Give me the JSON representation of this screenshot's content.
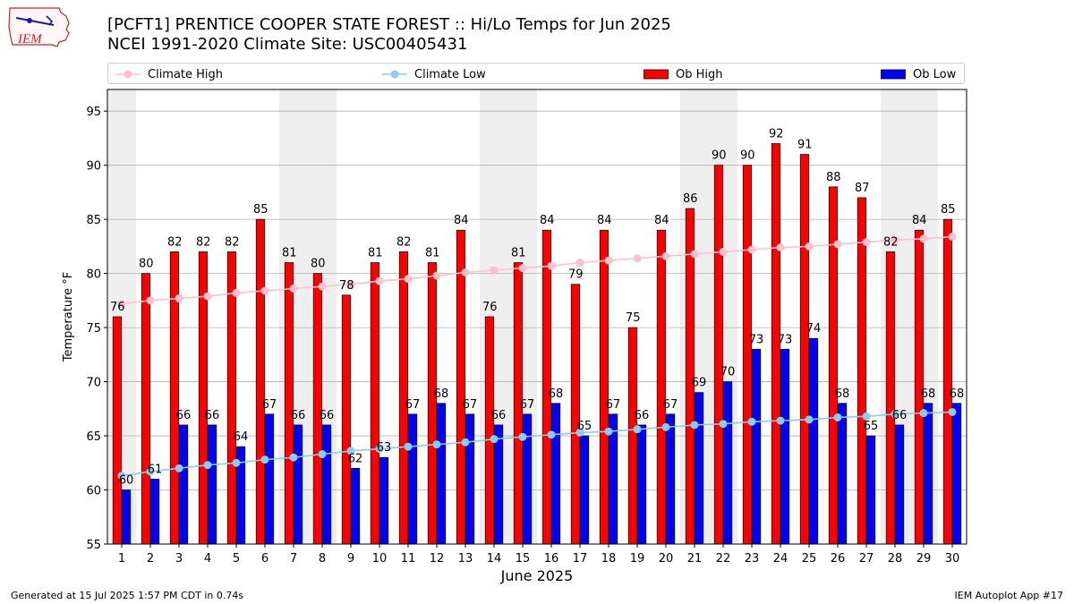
{
  "header": {
    "title_line1": "[PCFT1] PRENTICE COOPER STATE FOREST :: Hi/Lo Temps for Jun 2025",
    "title_line2": "NCEI 1991-2020 Climate Site: USC00405431",
    "logo_text": "IEM"
  },
  "legend": {
    "climate_high": "Climate High",
    "climate_low": "Climate Low",
    "ob_high": "Ob High",
    "ob_low": "Ob Low"
  },
  "footer": {
    "generated": "Generated at 15 Jul 2025 1:57 PM CDT in 0.74s",
    "app": "IEM Autoplot App #17"
  },
  "colors": {
    "ob_high": "#ff0000",
    "ob_low": "#0000ff",
    "climate_high": "#ffc0cb",
    "climate_low": "#87ceeb",
    "weekend_band": "#eeeeee",
    "grid": "#b0b0b0"
  },
  "chart_data": {
    "type": "bar",
    "xlabel": "June 2025",
    "ylabel": "Temperature °F",
    "ylim": [
      55,
      97
    ],
    "yticks": [
      55,
      60,
      65,
      70,
      75,
      80,
      85,
      90,
      95
    ],
    "grid": "horizontal",
    "legend_position": "top",
    "categories": [
      "1",
      "2",
      "3",
      "4",
      "5",
      "6",
      "7",
      "8",
      "9",
      "10",
      "11",
      "12",
      "13",
      "14",
      "15",
      "16",
      "17",
      "18",
      "19",
      "20",
      "21",
      "22",
      "23",
      "24",
      "25",
      "26",
      "27",
      "28",
      "29",
      "30"
    ],
    "weekend_days": [
      1,
      7,
      8,
      14,
      15,
      21,
      22,
      28,
      29
    ],
    "series": [
      {
        "name": "Ob High",
        "kind": "bar",
        "values": [
          76,
          80,
          82,
          82,
          82,
          85,
          81,
          80,
          78,
          81,
          82,
          81,
          84,
          76,
          81,
          84,
          79,
          84,
          75,
          84,
          86,
          90,
          90,
          92,
          91,
          88,
          87,
          82,
          84,
          85
        ]
      },
      {
        "name": "Ob Low",
        "kind": "bar",
        "values": [
          60,
          61,
          66,
          66,
          64,
          67,
          66,
          66,
          62,
          63,
          67,
          68,
          67,
          66,
          67,
          68,
          65,
          67,
          66,
          67,
          69,
          70,
          73,
          73,
          74,
          68,
          65,
          66,
          68,
          68
        ]
      },
      {
        "name": "Climate High",
        "kind": "line",
        "values": [
          77.2,
          77.5,
          77.7,
          77.9,
          78.2,
          78.4,
          78.6,
          78.8,
          79.0,
          79.3,
          79.5,
          79.8,
          80.1,
          80.3,
          80.5,
          80.7,
          81.0,
          81.2,
          81.4,
          81.6,
          81.8,
          82.0,
          82.2,
          82.4,
          82.5,
          82.7,
          82.9,
          83.1,
          83.2,
          83.4
        ]
      },
      {
        "name": "Climate Low",
        "kind": "line",
        "values": [
          61.3,
          61.7,
          62.0,
          62.3,
          62.5,
          62.8,
          63.0,
          63.3,
          63.6,
          63.8,
          64.0,
          64.2,
          64.4,
          64.7,
          64.9,
          65.1,
          65.3,
          65.4,
          65.6,
          65.8,
          66.0,
          66.1,
          66.3,
          66.4,
          66.5,
          66.7,
          66.8,
          67.0,
          67.1,
          67.2
        ]
      }
    ]
  }
}
